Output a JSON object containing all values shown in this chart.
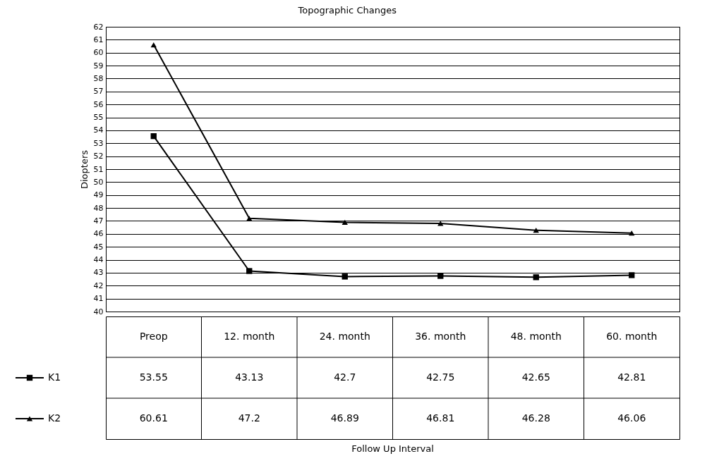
{
  "chart_data": {
    "type": "line",
    "title": "Topographic Changes",
    "annotations": [
      "Follow Up Interval"
    ],
    "ylabel": "Diopters",
    "categories": [
      "Preop",
      "12. month",
      "24. month",
      "36. month",
      "48. month",
      "60. month"
    ],
    "series": [
      {
        "name": "K1",
        "color": "#000000",
        "marker": "square",
        "values": [
          53.55,
          43.13,
          42.7,
          42.75,
          42.65,
          42.81
        ]
      },
      {
        "name": "K2",
        "color": "#000000",
        "marker": "triangle",
        "values": [
          60.61,
          47.2,
          46.89,
          46.81,
          46.28,
          46.06
        ]
      }
    ],
    "ylim": [
      40,
      62
    ],
    "yticks": [
      40,
      41,
      42,
      43,
      44,
      45,
      46,
      47,
      48,
      49,
      50,
      51,
      52,
      53,
      54,
      55,
      56,
      57,
      58,
      59,
      60,
      61,
      62
    ],
    "grid": "y",
    "legend": "bottom left",
    "data_labels": true,
    "line_style": "solid"
  }
}
